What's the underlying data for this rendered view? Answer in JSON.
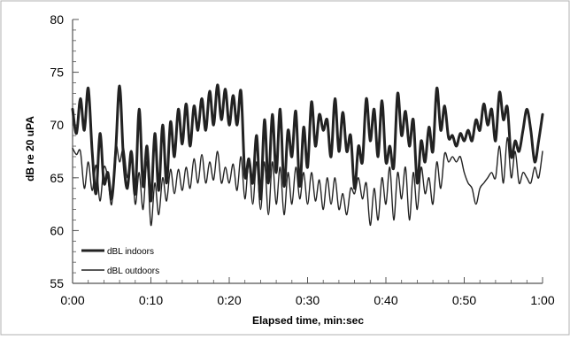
{
  "chart_data": {
    "type": "line",
    "title": "",
    "xlabel": "Elapsed time, min:sec",
    "ylabel": "dB re 20 uPA",
    "xlim": [
      0,
      60
    ],
    "ylim": [
      55,
      80
    ],
    "x_ticks": [
      {
        "value": 0,
        "label": "0:00"
      },
      {
        "value": 10,
        "label": "0:10"
      },
      {
        "value": 20,
        "label": "0:20"
      },
      {
        "value": 30,
        "label": "0:30"
      },
      {
        "value": 40,
        "label": "0:40"
      },
      {
        "value": 50,
        "label": "0:50"
      },
      {
        "value": 60,
        "label": "1:00"
      }
    ],
    "y_ticks": [
      {
        "value": 55,
        "label": "55"
      },
      {
        "value": 60,
        "label": "60"
      },
      {
        "value": 65,
        "label": "65"
      },
      {
        "value": 70,
        "label": "70"
      },
      {
        "value": 75,
        "label": "75"
      },
      {
        "value": 80,
        "label": "80"
      }
    ],
    "grid": false,
    "legend_position": "bottom-left",
    "series": [
      {
        "name": "dBL indoors",
        "color": "#222222",
        "width": "thick",
        "x": [
          0,
          0.5,
          1,
          1.5,
          2,
          2.5,
          3,
          3.5,
          4,
          4.5,
          5,
          5.5,
          6,
          6.5,
          7,
          7.5,
          8,
          8.5,
          9,
          9.5,
          10,
          10.5,
          11,
          11.5,
          12,
          12.5,
          13,
          13.5,
          14,
          14.5,
          15,
          15.5,
          16,
          16.5,
          17,
          17.5,
          18,
          18.5,
          19,
          19.5,
          20,
          20.5,
          21,
          21.5,
          22,
          22.5,
          23,
          23.5,
          24,
          24.5,
          25,
          25.5,
          26,
          26.5,
          27,
          27.5,
          28,
          28.5,
          29,
          29.5,
          30,
          30.5,
          31,
          31.5,
          32,
          32.5,
          33,
          33.5,
          34,
          34.5,
          35,
          35.5,
          36,
          36.5,
          37,
          37.5,
          38,
          38.5,
          39,
          39.5,
          40,
          40.5,
          41,
          41.5,
          42,
          42.5,
          43,
          43.5,
          44,
          44.5,
          45,
          45.5,
          46,
          46.5,
          47,
          47.5,
          48,
          48.5,
          49,
          49.5,
          50,
          50.5,
          51,
          51.5,
          52,
          52.5,
          53,
          53.5,
          54,
          54.5,
          55,
          55.5,
          56,
          56.5,
          57,
          57.5,
          58,
          58.5,
          59,
          59.5,
          60
        ],
        "y": [
          71.5,
          69.2,
          72.5,
          69.5,
          73.5,
          67.5,
          63.5,
          69.2,
          64.5,
          65.5,
          63.0,
          67.5,
          73.7,
          66.8,
          64.0,
          67.5,
          63.5,
          71.5,
          64.2,
          68.0,
          62.8,
          69.2,
          63.8,
          70.0,
          64.5,
          70.3,
          67.0,
          71.5,
          68.2,
          72.0,
          68.0,
          71.8,
          69.5,
          72.5,
          69.5,
          73.2,
          70.0,
          73.8,
          70.5,
          73.4,
          70.0,
          72.8,
          70.0,
          73.2,
          65.2,
          66.8,
          64.5,
          69.0,
          63.0,
          70.5,
          64.5,
          71.0,
          65.5,
          71.5,
          64.2,
          69.5,
          67.0,
          71.3,
          64.2,
          69.8,
          66.0,
          72.2,
          68.0,
          71.0,
          69.5,
          70.5,
          67.0,
          72.5,
          67.5,
          71.2,
          67.5,
          69.0,
          64.0,
          68.0,
          66.5,
          72.5,
          68.5,
          71.5,
          67.0,
          72.3,
          66.5,
          68.0,
          66.0,
          73.0,
          69.0,
          71.3,
          68.0,
          70.5,
          64.5,
          68.5,
          66.5,
          69.8,
          67.5,
          73.5,
          69.5,
          71.8,
          68.8,
          69.0,
          68.0,
          69.2,
          68.5,
          69.5,
          68.5,
          70.5,
          69.5,
          72.0,
          70.0,
          71.5,
          68.5,
          73.1,
          70.5,
          71.7,
          67.0,
          68.5,
          67.5,
          69.5,
          71.5,
          69.5,
          66.5,
          68.5,
          71.0
        ]
      },
      {
        "name": "dBL outdoors",
        "color": "#222222",
        "width": "thin",
        "x": [
          0,
          0.5,
          1,
          1.5,
          2,
          2.5,
          3,
          3.5,
          4,
          4.5,
          5,
          5.5,
          6,
          6.5,
          7,
          7.5,
          8,
          8.5,
          9,
          9.5,
          10,
          10.5,
          11,
          11.5,
          12,
          12.5,
          13,
          13.5,
          14,
          14.5,
          15,
          15.5,
          16,
          16.5,
          17,
          17.5,
          18,
          18.5,
          19,
          19.5,
          20,
          20.5,
          21,
          21.5,
          22,
          22.5,
          23,
          23.5,
          24,
          24.5,
          25,
          25.5,
          26,
          26.5,
          27,
          27.5,
          28,
          28.5,
          29,
          29.5,
          30,
          30.5,
          31,
          31.5,
          32,
          32.5,
          33,
          33.5,
          34,
          34.5,
          35,
          35.5,
          36,
          36.5,
          37,
          37.5,
          38,
          38.5,
          39,
          39.5,
          40,
          40.5,
          41,
          41.5,
          42,
          42.5,
          43,
          43.5,
          44,
          44.5,
          45,
          45.5,
          46,
          46.5,
          47,
          47.5,
          48,
          48.5,
          49,
          49.5,
          50,
          50.5,
          51,
          51.5,
          52,
          52.5,
          53,
          53.5,
          54,
          54.5,
          55,
          55.5,
          56,
          56.5,
          57,
          57.5,
          58,
          58.5,
          59,
          59.5,
          60
        ],
        "y": [
          67.8,
          67.2,
          67.5,
          64.0,
          66.5,
          63.8,
          66.2,
          62.8,
          66.0,
          65.0,
          62.5,
          68.0,
          66.5,
          67.8,
          65.0,
          67.0,
          62.5,
          65.5,
          62.0,
          66.5,
          60.5,
          64.5,
          61.5,
          65.0,
          62.8,
          65.8,
          63.5,
          65.8,
          63.8,
          66.0,
          64.0,
          66.8,
          64.5,
          67.2,
          64.5,
          66.5,
          64.8,
          67.5,
          64.5,
          66.0,
          64.5,
          66.3,
          63.8,
          67.0,
          63.0,
          66.5,
          62.5,
          66.5,
          62.0,
          66.5,
          61.5,
          66.5,
          62.5,
          66.0,
          61.5,
          65.5,
          62.5,
          66.0,
          63.0,
          65.5,
          62.5,
          65.5,
          62.8,
          64.8,
          62.0,
          65.0,
          62.5,
          65.0,
          62.0,
          63.5,
          61.5,
          64.0,
          63.5,
          65.0,
          63.0,
          64.5,
          60.5,
          64.0,
          61.0,
          65.0,
          62.5,
          66.0,
          61.0,
          65.5,
          63.0,
          66.0,
          61.0,
          65.5,
          62.0,
          66.0,
          63.5,
          65.0,
          62.5,
          66.5,
          64.0,
          67.3,
          66.5,
          67.0,
          66.5,
          67.0,
          65.5,
          64.5,
          64.0,
          62.5,
          64.0,
          64.5,
          65.0,
          65.5,
          65.0,
          68.0,
          64.5,
          68.8,
          65.0,
          67.5,
          64.5,
          65.5,
          65.0,
          64.5,
          66.0,
          65.0,
          67.5
        ]
      }
    ]
  }
}
